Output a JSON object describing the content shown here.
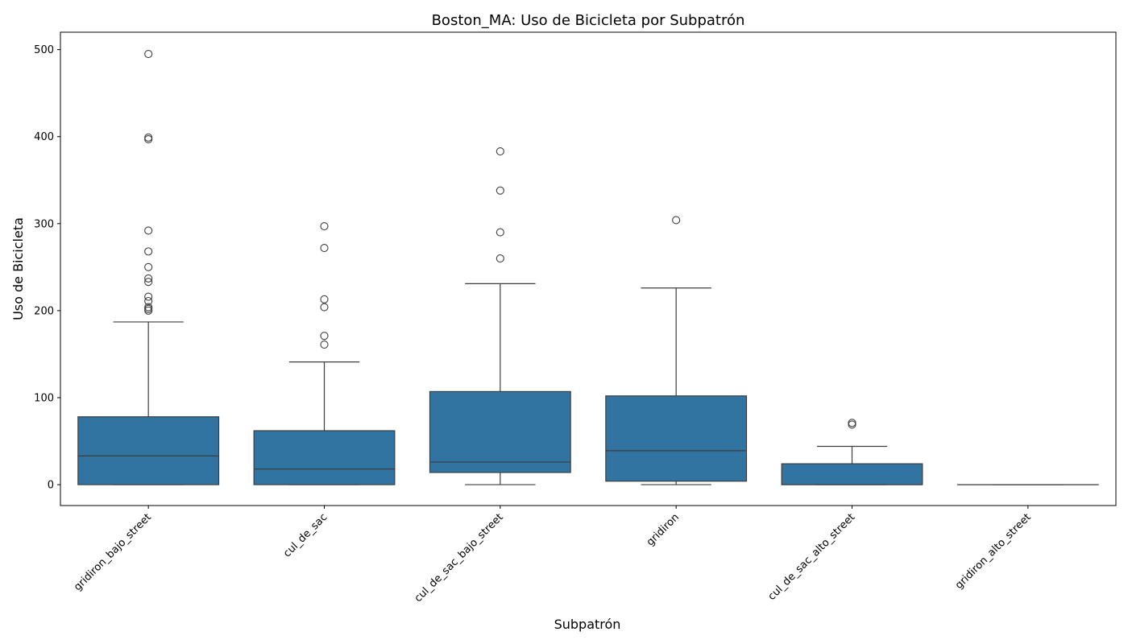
{
  "chart_data": {
    "type": "box",
    "title": "Boston_MA: Uso de Bicicleta por Subpatrón",
    "xlabel": "Subpatrón",
    "ylabel": "Uso de Bicicleta",
    "ylim": [
      -24,
      520
    ],
    "yticks": [
      0,
      100,
      200,
      300,
      400,
      500
    ],
    "grid": false,
    "box_color": "#3274a1",
    "categories": [
      "gridiron_bajo_street",
      "cul_de_sac",
      "cul_de_sac_bajo_street",
      "gridiron",
      "cul_de_sac_alto_street",
      "gridiron_alto_street"
    ],
    "boxes": [
      {
        "category": "gridiron_bajo_street",
        "whisker_low": 0,
        "q1": 0,
        "median": 33,
        "q3": 78,
        "whisker_high": 187,
        "outliers": [
          200,
          202,
          204,
          211,
          216,
          233,
          237,
          250,
          268,
          292,
          397,
          399,
          495
        ]
      },
      {
        "category": "cul_de_sac",
        "whisker_low": 0,
        "q1": 0,
        "median": 18,
        "q3": 62,
        "whisker_high": 141,
        "outliers": [
          161,
          171,
          204,
          213,
          272,
          297
        ]
      },
      {
        "category": "cul_de_sac_bajo_street",
        "whisker_low": 0,
        "q1": 14,
        "median": 26,
        "q3": 107,
        "whisker_high": 231,
        "outliers": [
          260,
          290,
          338,
          383
        ]
      },
      {
        "category": "gridiron",
        "whisker_low": 0,
        "q1": 4,
        "median": 39,
        "q3": 102,
        "whisker_high": 226,
        "outliers": [
          304
        ]
      },
      {
        "category": "cul_de_sac_alto_street",
        "whisker_low": 0,
        "q1": 0,
        "median": 0,
        "q3": 24,
        "whisker_high": 44,
        "outliers": [
          69,
          71
        ]
      },
      {
        "category": "gridiron_alto_street",
        "whisker_low": 0,
        "q1": 0,
        "median": 0,
        "q3": 0,
        "whisker_high": 0,
        "outliers": []
      }
    ]
  }
}
